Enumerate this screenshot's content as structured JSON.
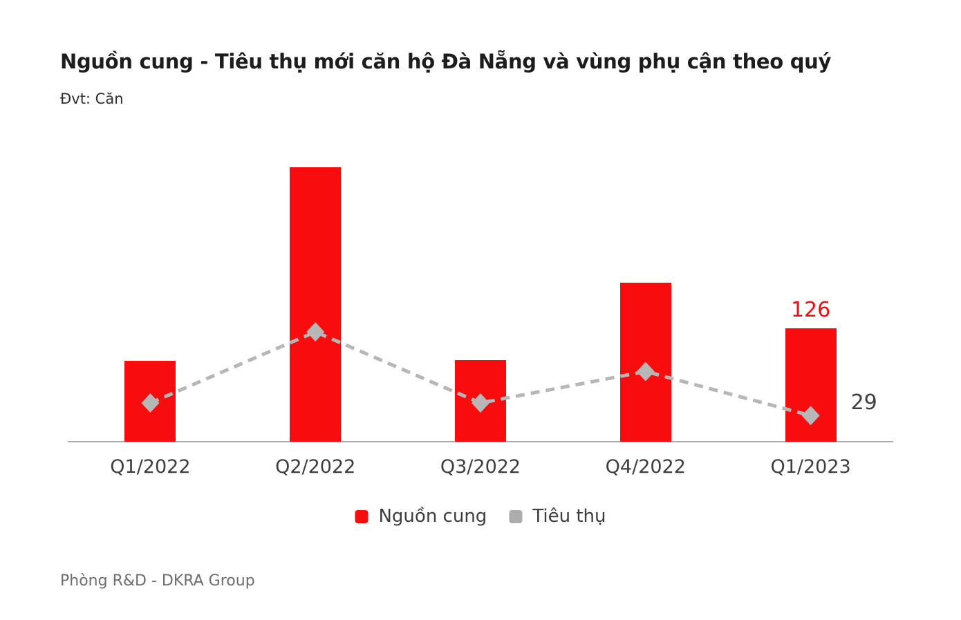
{
  "header": {
    "title": "Nguồn cung - Tiêu thụ mới căn hộ Đà Nẵng và vùng phụ cận theo quý",
    "unit_note": "Đvt: Căn"
  },
  "legend": {
    "items": [
      {
        "label": "Nguồn cung",
        "color": "#f90c0e"
      },
      {
        "label": "Tiêu thụ",
        "color": "#adadad"
      }
    ]
  },
  "footer": {
    "source": "Phòng R&D - DKRA Group"
  },
  "colors": {
    "bar_red": "#f90c0e",
    "line_gray": "#b7b7b7",
    "axis_gray": "#a9a9a9",
    "label_dark": "#3f3f3f",
    "annotation_red": "#f20d10"
  },
  "chart_data": {
    "type": "combo",
    "title": "Nguồn cung - Tiêu thụ mới căn hộ Đà Nẵng và vùng phụ cận theo quý",
    "unit_note": "Đvt: Căn",
    "categories": [
      "Q1/2022",
      "Q2/2022",
      "Q3/2022",
      "Q4/2022",
      "Q1/2023"
    ],
    "series": [
      {
        "name": "Nguồn cung",
        "type": "bar",
        "color": "#f90c0e",
        "values": [
          90,
          305,
          91,
          177,
          126
        ],
        "data_labels": [
          null,
          null,
          null,
          null,
          "126"
        ],
        "label_color": "#f20d10"
      },
      {
        "name": "Tiêu thụ",
        "type": "line",
        "line_style": "dashed",
        "marker": "diamond",
        "color": "#b7b7b7",
        "values": [
          43,
          122,
          43,
          78,
          29
        ],
        "data_labels": [
          null,
          null,
          null,
          null,
          "29"
        ],
        "label_color": "#3f3f3f"
      }
    ],
    "xlabel": "",
    "ylabel": "",
    "ylim": [
      0,
      330
    ],
    "grid": false,
    "value_axis_hidden": true,
    "legend_position": "bottom"
  }
}
